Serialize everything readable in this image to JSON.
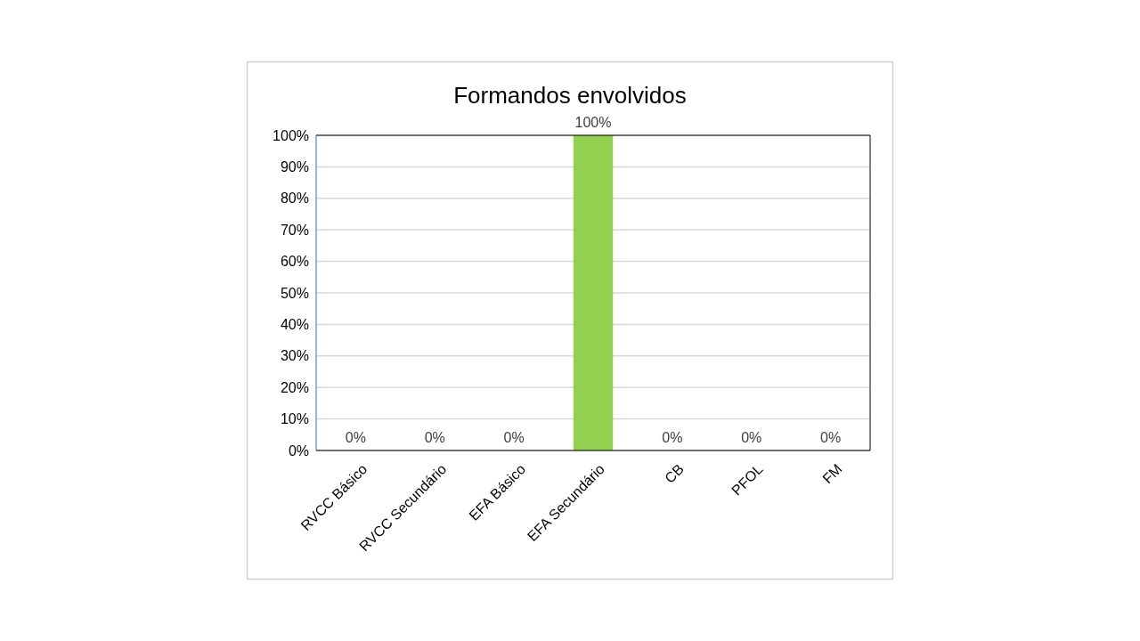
{
  "chart_data": {
    "type": "bar",
    "title": "Formandos envolvidos",
    "categories": [
      "RVCC Básico",
      "RVCC Secundário",
      "EFA Básico",
      "EFA Secundário",
      "CB",
      "PFOL",
      "FM"
    ],
    "values": [
      0,
      0,
      0,
      100,
      0,
      0,
      0
    ],
    "color": "#92d050",
    "value_labels": [
      "0%",
      "0%",
      "0%",
      "100%",
      "0%",
      "0%",
      "0%"
    ],
    "ylim": [
      0,
      100
    ],
    "yticks": [
      {
        "value": 0,
        "label": "0%"
      },
      {
        "value": 10,
        "label": "10%"
      },
      {
        "value": 20,
        "label": "20%"
      },
      {
        "value": 30,
        "label": "30%"
      },
      {
        "value": 40,
        "label": "40%"
      },
      {
        "value": 50,
        "label": "50%"
      },
      {
        "value": 60,
        "label": "60%"
      },
      {
        "value": 70,
        "label": "70%"
      },
      {
        "value": 80,
        "label": "80%"
      },
      {
        "value": 90,
        "label": "90%"
      },
      {
        "value": 100,
        "label": "100%"
      }
    ],
    "grid": "y"
  }
}
